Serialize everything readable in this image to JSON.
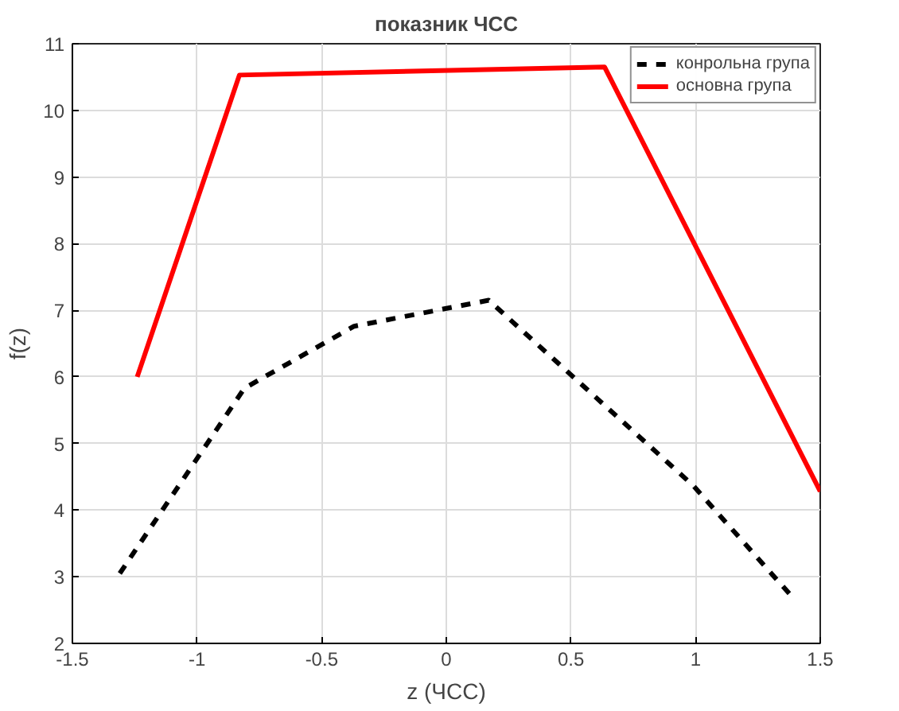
{
  "chart_data": {
    "type": "line",
    "title": "показник ЧСС",
    "xlabel": "z (ЧСС)",
    "ylabel": "f(z)",
    "xlim": [
      -1.5,
      1.5
    ],
    "xticks": [
      -1.5,
      -1,
      -0.5,
      0,
      0.5,
      1,
      1.5
    ],
    "ylim": [
      2,
      11
    ],
    "yticks": [
      2,
      3,
      4,
      5,
      6,
      7,
      8,
      9,
      10,
      11
    ],
    "grid": true,
    "legend": "top right",
    "marker": "none",
    "series": [
      {
        "name": "конрольна група",
        "color": "#000000",
        "line_style": "dashed",
        "x": [
          -1.31,
          -0.81,
          -0.37,
          0.17,
          0.99,
          1.38
        ],
        "values": [
          3.05,
          5.83,
          6.76,
          7.15,
          4.37,
          2.73
        ]
      },
      {
        "name": "основна група",
        "color": "#ff0000",
        "line_style": "solid",
        "x": [
          -1.24,
          -0.83,
          0.635,
          1.5
        ],
        "values": [
          6.0,
          10.53,
          10.65,
          4.28
        ]
      }
    ]
  }
}
